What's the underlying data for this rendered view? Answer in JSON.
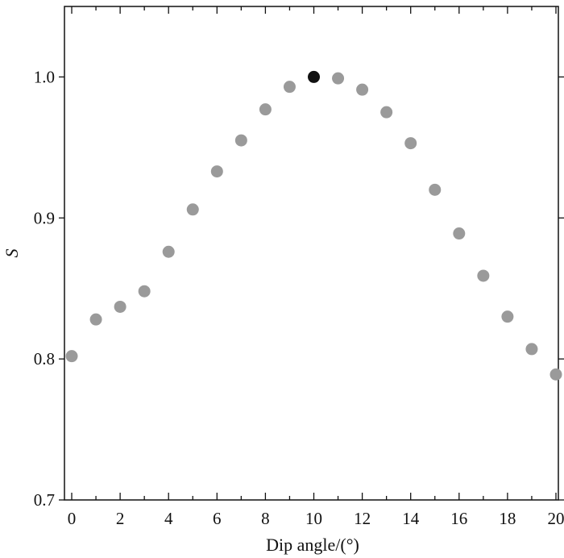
{
  "chart_data": {
    "type": "scatter",
    "title": "",
    "xlabel": "Dip angle/(°)",
    "ylabel": "S",
    "xlim": [
      -0.3,
      20.1
    ],
    "ylim": [
      0.7,
      1.05
    ],
    "x_ticks": [
      0,
      2,
      4,
      6,
      8,
      10,
      12,
      14,
      16,
      18,
      20
    ],
    "x_tick_labels": [
      "0",
      "2",
      "4",
      "6",
      "8",
      "10",
      "12",
      "14",
      "16",
      "18",
      "20"
    ],
    "x_minor_ticks": [
      1,
      3,
      5,
      7,
      9,
      11,
      13,
      15,
      17,
      19
    ],
    "y_ticks": [
      0.7,
      0.8,
      0.9,
      1.0
    ],
    "y_tick_labels": [
      "0.7",
      "0.8",
      "0.9",
      "1.0"
    ],
    "grid": false,
    "series": [
      {
        "color": "#9a9a9a",
        "x": [
          0,
          1,
          2,
          3,
          4,
          5,
          6,
          7,
          8,
          9,
          11,
          12,
          13,
          14,
          15,
          16,
          17,
          18,
          19,
          20
        ],
        "y": [
          0.802,
          0.828,
          0.837,
          0.848,
          0.876,
          0.906,
          0.933,
          0.955,
          0.977,
          0.993,
          0.999,
          0.991,
          0.975,
          0.953,
          0.92,
          0.889,
          0.859,
          0.83,
          0.807,
          0.789
        ]
      },
      {
        "color": "#111111",
        "x": [
          10
        ],
        "y": [
          1.0
        ]
      }
    ]
  }
}
